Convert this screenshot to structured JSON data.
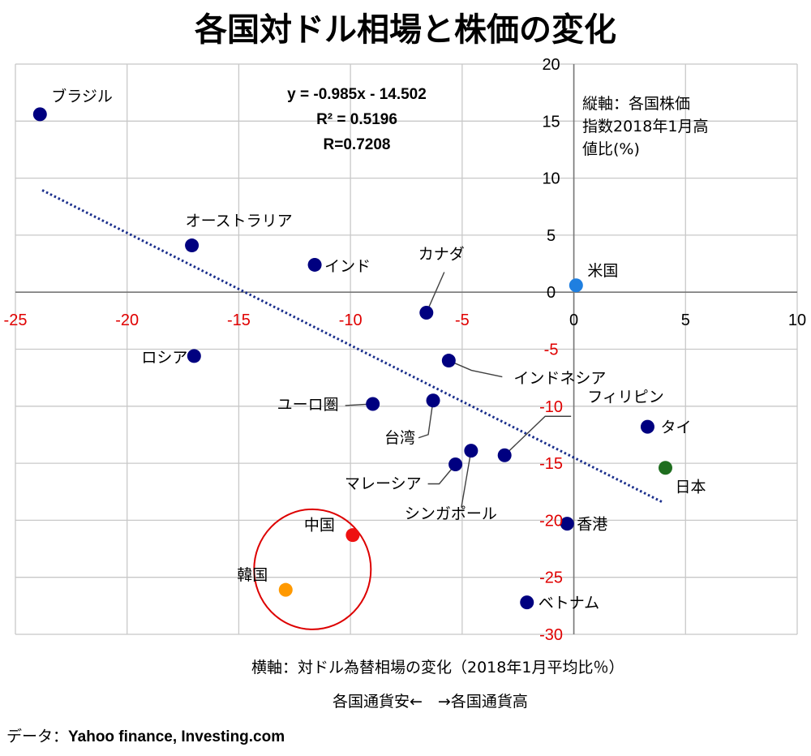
{
  "title": "各国対ドル相場と株価の変化",
  "y_axis_note": [
    "縦軸：各国株価",
    "指数2018年1月高",
    "値比(%)"
  ],
  "regression": {
    "equation": "y = -0.985x - 14.502",
    "r2": "R² = 0.5196",
    "r": "R=0.7208"
  },
  "x_axis_title": "横軸：対ドル為替相場の変化（2018年1月平均比％）",
  "x_direction": "各国通貨安←　→各国通貨高",
  "source_label": "データ：",
  "source_names": "Yahoo finance, Investing.com",
  "colors": {
    "default_point": "#000080",
    "us": "#1f7fe0",
    "japan": "#1f6e1f",
    "china": "#ee1111",
    "korea": "#ff9900",
    "trendline": "#1a2e8c",
    "negative_tick": "#e00000",
    "grid": "#c8c8c8",
    "highlight_circle": "#dd0000"
  },
  "chart_data": {
    "type": "scatter",
    "xlim": [
      -25,
      10
    ],
    "ylim": [
      -30,
      20
    ],
    "x_ticks": [
      -25,
      -20,
      -15,
      -10,
      -5,
      0,
      5,
      10
    ],
    "y_ticks": [
      -30,
      -25,
      -20,
      -15,
      -10,
      -5,
      0,
      5,
      10,
      15,
      20
    ],
    "grid": true,
    "trendline": {
      "slope": -0.985,
      "intercept": -14.502,
      "x_range": [
        -23.8,
        4
      ]
    },
    "points": [
      {
        "label": "ブラジル",
        "x": -23.9,
        "y": 15.6,
        "color": "default"
      },
      {
        "label": "オーストラリア",
        "x": -17.1,
        "y": 4.1,
        "color": "default"
      },
      {
        "label": "インド",
        "x": -11.6,
        "y": 2.4,
        "color": "default"
      },
      {
        "label": "カナダ",
        "x": -6.6,
        "y": -1.8,
        "color": "default"
      },
      {
        "label": "米国",
        "x": 0.1,
        "y": 0.6,
        "color": "us"
      },
      {
        "label": "ロシア",
        "x": -17.0,
        "y": -5.6,
        "color": "default"
      },
      {
        "label": "インドネシア",
        "x": -5.6,
        "y": -6.0,
        "color": "default"
      },
      {
        "label": "ユーロ圏",
        "x": -9.0,
        "y": -9.8,
        "color": "default"
      },
      {
        "label": "台湾",
        "x": -6.3,
        "y": -9.5,
        "color": "default"
      },
      {
        "label": "フィリピン",
        "x": -3.1,
        "y": -14.3,
        "color": "default"
      },
      {
        "label": "タイ",
        "x": 3.3,
        "y": -11.8,
        "color": "default"
      },
      {
        "label": "日本",
        "x": 4.1,
        "y": -15.4,
        "color": "japan"
      },
      {
        "label": "マレーシア",
        "x": -5.3,
        "y": -15.1,
        "color": "default"
      },
      {
        "label": "シンガポール",
        "x": -4.6,
        "y": -13.9,
        "color": "default"
      },
      {
        "label": "香港",
        "x": -0.3,
        "y": -20.3,
        "color": "default"
      },
      {
        "label": "中国",
        "x": -9.9,
        "y": -21.3,
        "color": "china"
      },
      {
        "label": "韓国",
        "x": -12.9,
        "y": -26.1,
        "color": "korea"
      },
      {
        "label": "ベトナム",
        "x": -2.1,
        "y": -27.2,
        "color": "default"
      }
    ]
  }
}
